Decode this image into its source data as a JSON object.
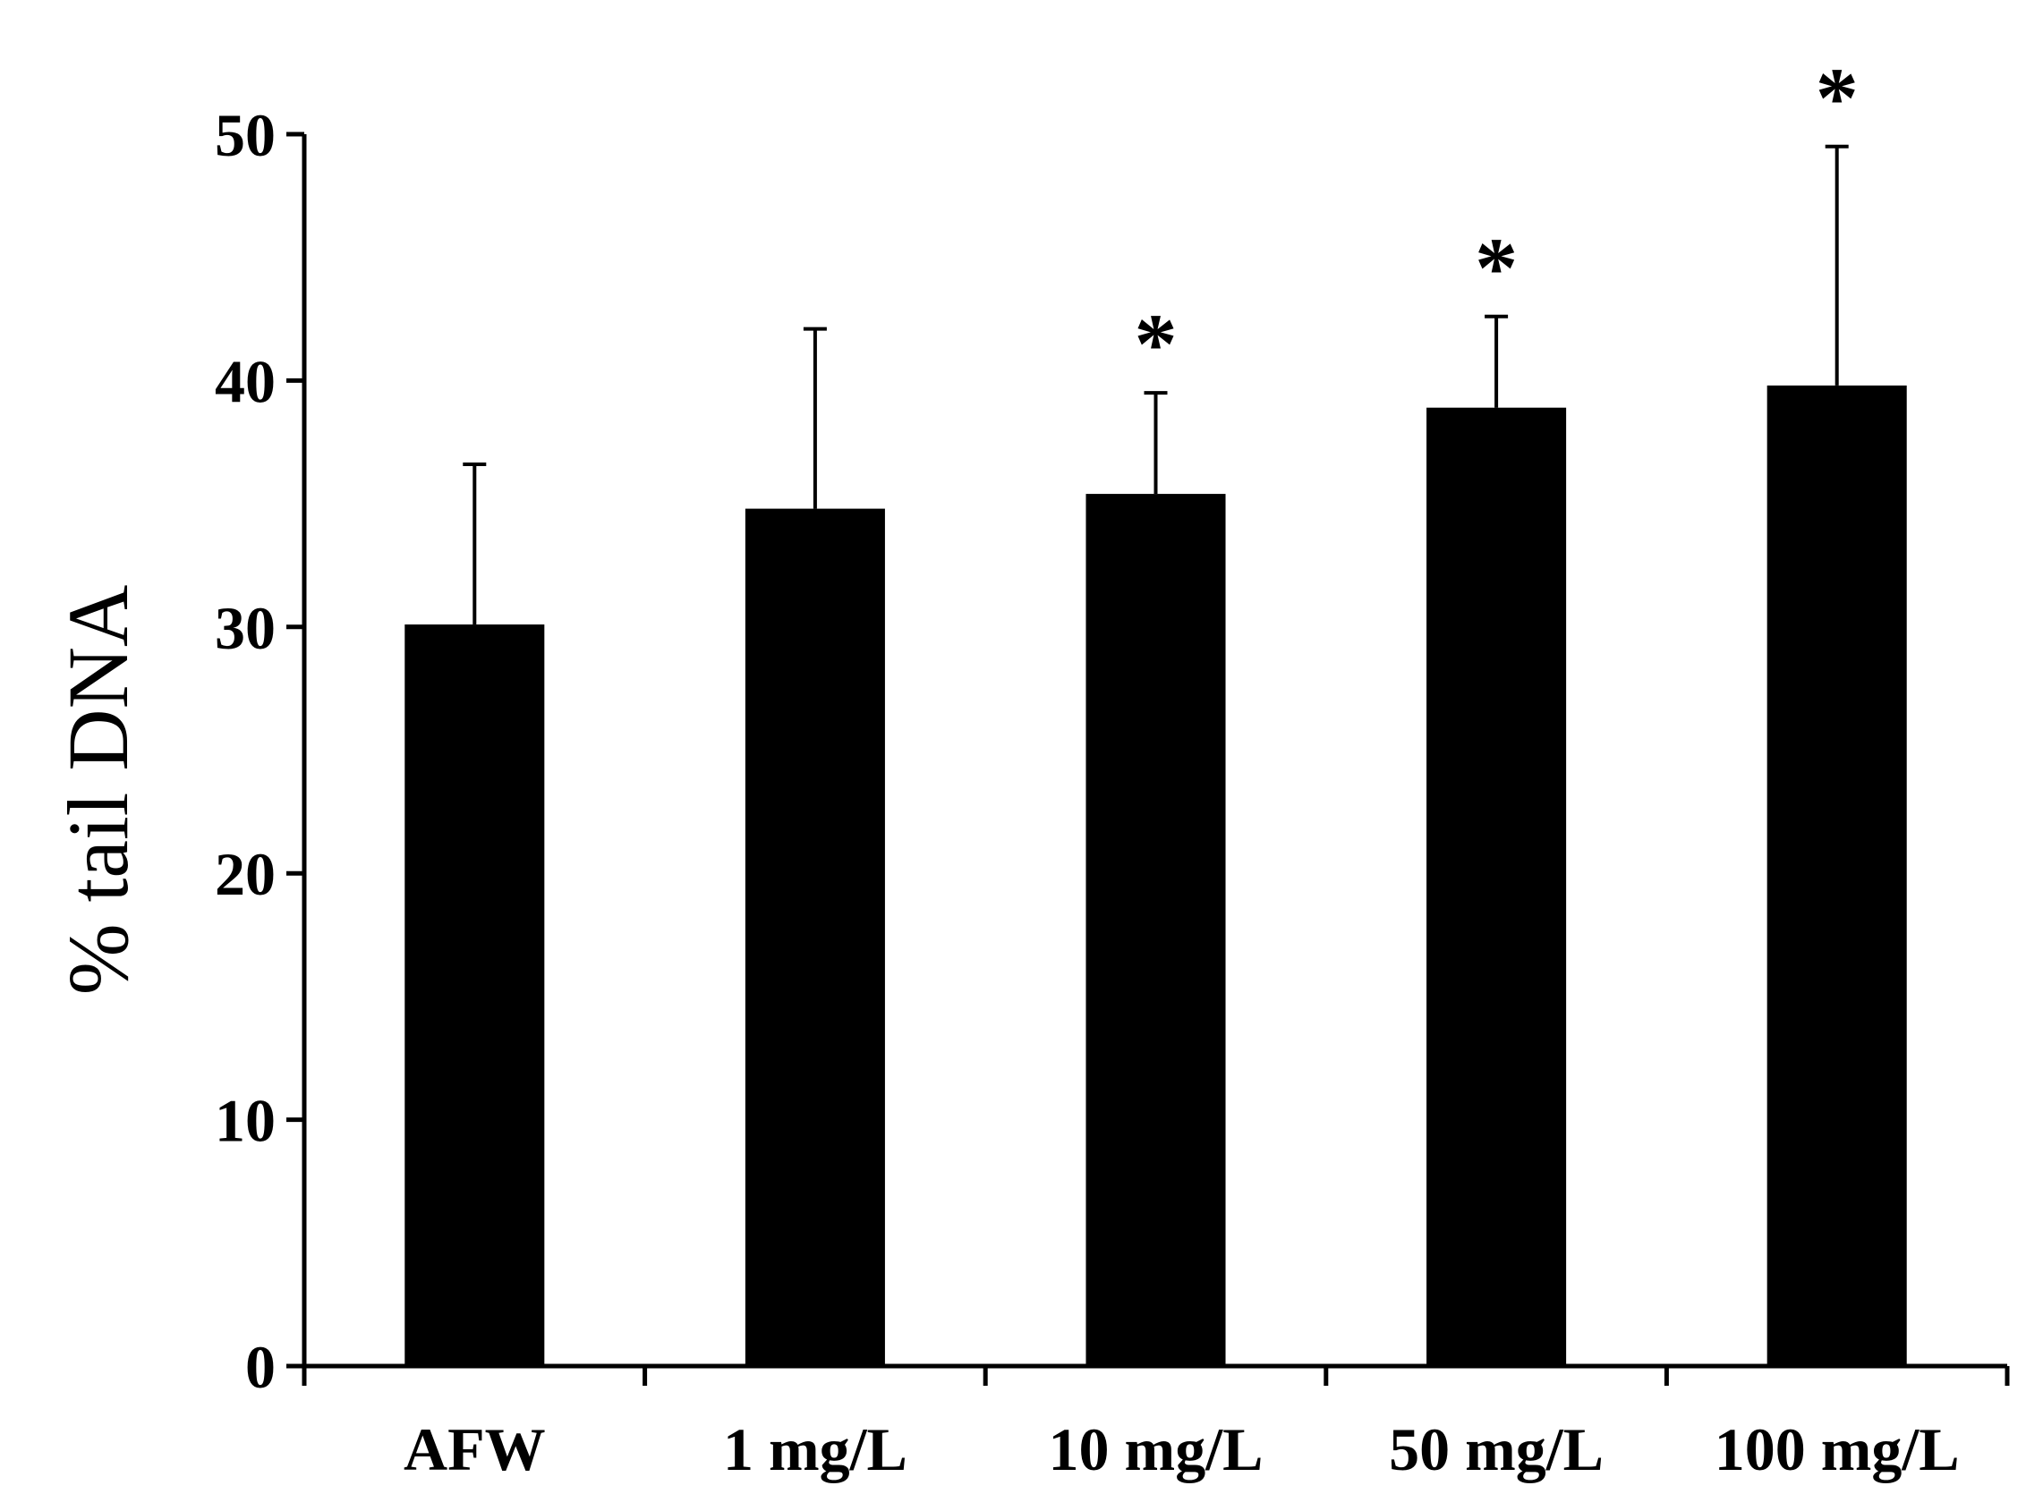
{
  "chart_data": {
    "type": "bar",
    "title": "",
    "xlabel": "",
    "ylabel": "% tail DNA",
    "categories": [
      "AFW",
      "1 mg/L",
      "10 mg/L",
      "50 mg/L",
      "100 mg/L"
    ],
    "values": [
      30.1,
      34.8,
      35.4,
      38.9,
      39.8
    ],
    "errors": [
      6.5,
      7.3,
      4.1,
      3.7,
      9.7
    ],
    "significance": [
      "",
      "",
      "*",
      "*",
      "*"
    ],
    "ylim": [
      0,
      50
    ],
    "yticks": [
      0,
      10,
      20,
      30,
      40,
      50
    ],
    "grid": false,
    "legend": "none",
    "bar_color": "#000000"
  }
}
